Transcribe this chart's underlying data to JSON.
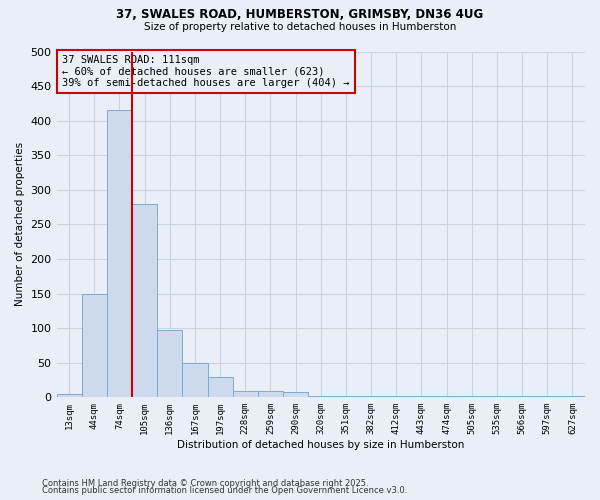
{
  "title1": "37, SWALES ROAD, HUMBERSTON, GRIMSBY, DN36 4UG",
  "title2": "Size of property relative to detached houses in Humberston",
  "xlabel": "Distribution of detached houses by size in Humberston",
  "ylabel": "Number of detached properties",
  "bar_color": "#ccdaec",
  "bar_edge_color": "#7aadd4",
  "categories": [
    "13sqm",
    "44sqm",
    "74sqm",
    "105sqm",
    "136sqm",
    "167sqm",
    "197sqm",
    "228sqm",
    "259sqm",
    "290sqm",
    "320sqm",
    "351sqm",
    "382sqm",
    "412sqm",
    "443sqm",
    "474sqm",
    "505sqm",
    "535sqm",
    "566sqm",
    "597sqm",
    "627sqm"
  ],
  "values": [
    5,
    150,
    415,
    280,
    97,
    50,
    30,
    9,
    9,
    7,
    2,
    2,
    2,
    2,
    2,
    2,
    2,
    2,
    2,
    2,
    2
  ],
  "vline_x": 2.5,
  "vline_color": "#cc0000",
  "annotation_text": "37 SWALES ROAD: 111sqm\n← 60% of detached houses are smaller (623)\n39% of semi-detached houses are larger (404) →",
  "annotation_box_color": "#cc0000",
  "ylim": [
    0,
    500
  ],
  "yticks": [
    0,
    50,
    100,
    150,
    200,
    250,
    300,
    350,
    400,
    450,
    500
  ],
  "grid_color": "#c8d4e4",
  "background_color": "#eaeff7",
  "footer_line1": "Contains HM Land Registry data © Crown copyright and database right 2025.",
  "footer_line2": "Contains public sector information licensed under the Open Government Licence v3.0."
}
